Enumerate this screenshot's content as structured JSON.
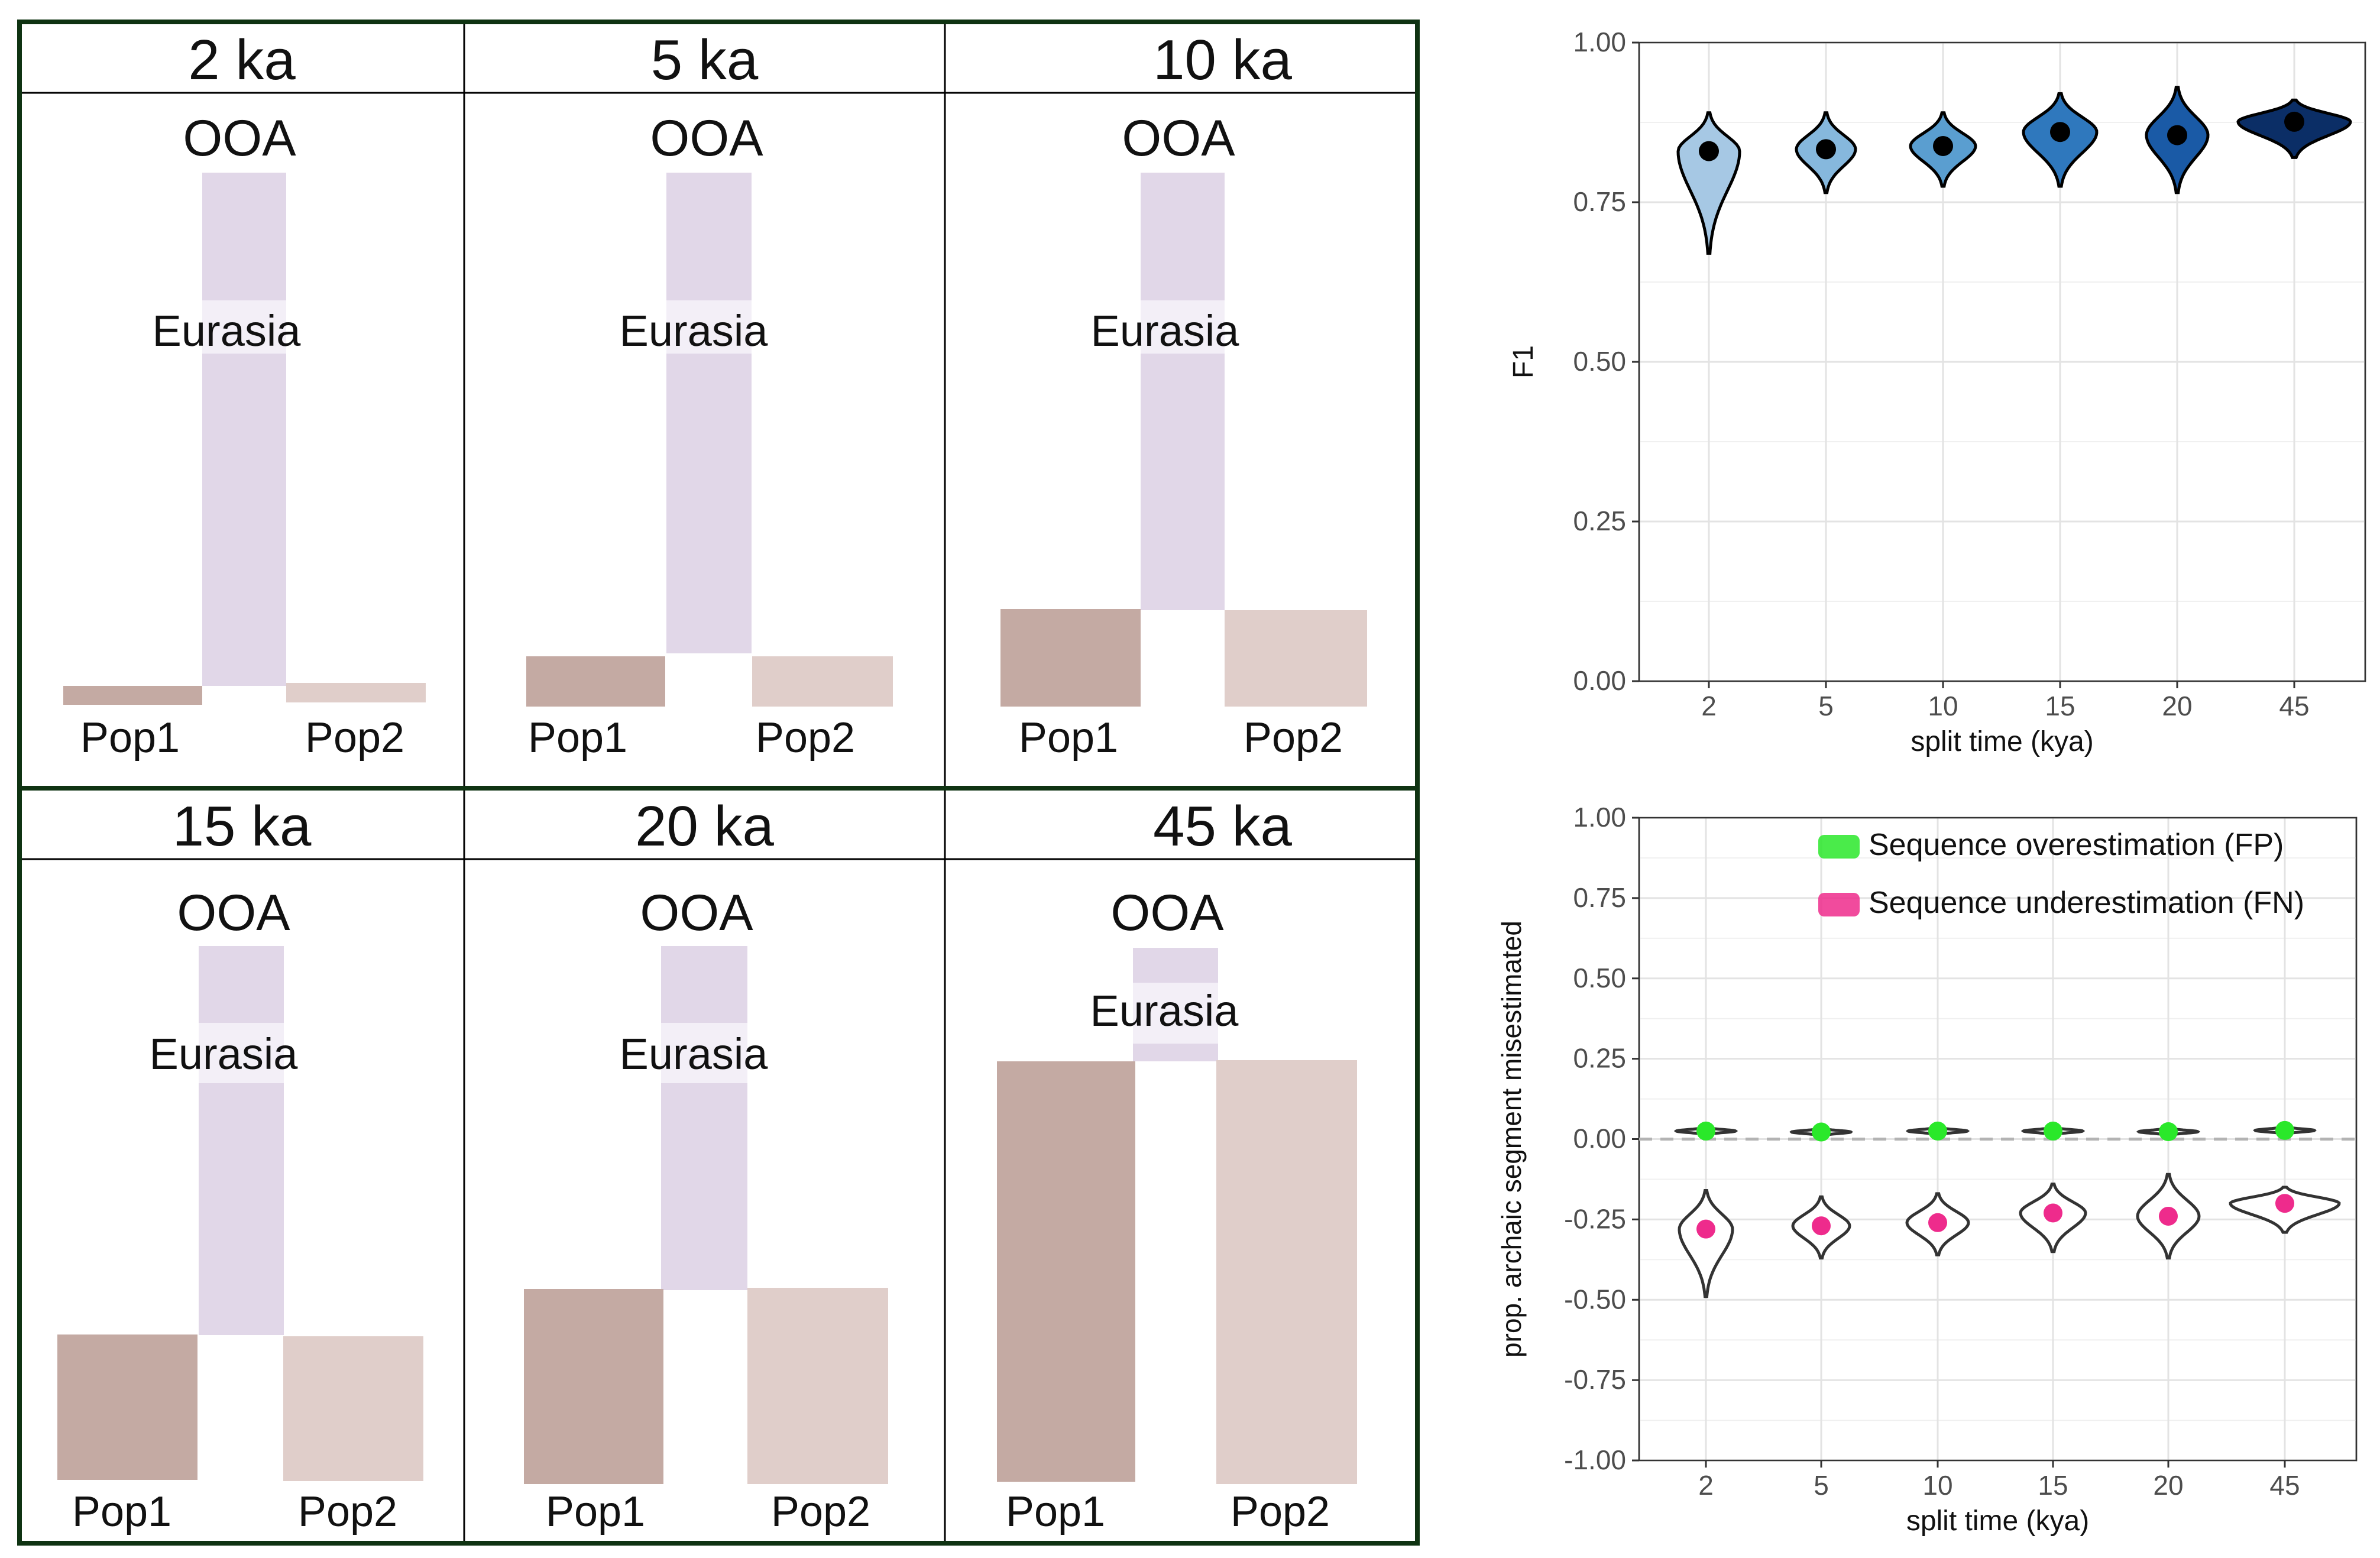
{
  "diagrams": {
    "top_label": "OOA",
    "mid_label": "Eurasia",
    "pop1_label": "Pop1",
    "pop2_label": "Pop2",
    "colors": {
      "ooa_bar": "#e1d7e8",
      "eurasia_band": "#f3eff7",
      "pop1": "#c4aaa3",
      "pop2": "#e0ceca",
      "frame": "#0f3312"
    },
    "panels": [
      {
        "title": "2 ka"
      },
      {
        "title": "5 ka"
      },
      {
        "title": "10 ka"
      },
      {
        "title": "15 ka"
      },
      {
        "title": "20 ka"
      },
      {
        "title": "45 ka"
      }
    ]
  },
  "chart_data": [
    {
      "type": "violin",
      "categories": [
        "2",
        "5",
        "10",
        "15",
        "20",
        "45"
      ],
      "xlabel": "split time (kya)",
      "ylabel": "F1",
      "ylim": [
        0,
        1
      ],
      "y_ticks": [
        "0.00",
        "0.25",
        "0.50",
        "0.75",
        "1.00"
      ],
      "grid": true,
      "series": [
        {
          "medians": [
            0.83,
            0.833,
            0.838,
            0.86,
            0.855,
            0.876
          ],
          "ranges": [
            [
              0.67,
              0.89
            ],
            [
              0.765,
              0.89
            ],
            [
              0.775,
              0.89
            ],
            [
              0.775,
              0.92
            ],
            [
              0.765,
              0.93
            ],
            [
              0.82,
              0.91
            ]
          ],
          "fill_colors": [
            "#a6c8e4",
            "#86b8dd",
            "#5a9ed0",
            "#2f78bd",
            "#1a5aa6",
            "#0b2e66"
          ]
        }
      ]
    },
    {
      "type": "violin",
      "categories": [
        "2",
        "5",
        "10",
        "15",
        "20",
        "45"
      ],
      "xlabel": "split time (kya)",
      "ylabel": "prop. archaic segment misestimated",
      "ylim": [
        -1,
        1
      ],
      "y_ticks": [
        "-1.00",
        "-0.75",
        "-0.50",
        "-0.25",
        "0.00",
        "0.25",
        "0.50",
        "0.75",
        "1.00"
      ],
      "reference_line": 0,
      "legend": "top-right",
      "grid": true,
      "series": [
        {
          "name": "Sequence overestimation (FP)",
          "color": "#2ae82a",
          "values": [
            0.025,
            0.022,
            0.025,
            0.025,
            0.023,
            0.027
          ]
        },
        {
          "name": "Sequence underestimation (FN)",
          "color": "#ee2b8c",
          "values": [
            -0.28,
            -0.27,
            -0.26,
            -0.23,
            -0.24,
            -0.2
          ],
          "ranges": [
            [
              -0.49,
              -0.16
            ],
            [
              -0.37,
              -0.18
            ],
            [
              -0.36,
              -0.17
            ],
            [
              -0.35,
              -0.14
            ],
            [
              -0.37,
              -0.11
            ],
            [
              -0.29,
              -0.15
            ]
          ]
        }
      ]
    }
  ]
}
